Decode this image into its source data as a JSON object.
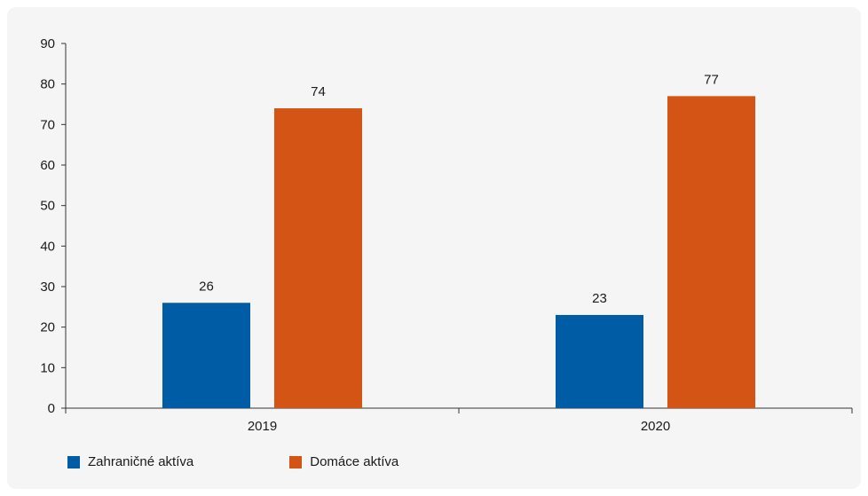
{
  "chart_data": {
    "type": "bar",
    "categories": [
      "2019",
      "2020"
    ],
    "series": [
      {
        "name": "Zahraničné aktíva",
        "values": [
          26,
          23
        ],
        "color": "#005DA5"
      },
      {
        "name": "Domáce aktíva",
        "values": [
          74,
          77
        ],
        "color": "#D35415"
      }
    ],
    "ylim": [
      0,
      90
    ],
    "yticks": [
      0,
      10,
      20,
      30,
      40,
      50,
      60,
      70,
      80,
      90
    ],
    "data_labels": [
      [
        "26",
        "23"
      ],
      [
        "74",
        "77"
      ]
    ],
    "grid": false,
    "legend_position": "bottom-left"
  }
}
